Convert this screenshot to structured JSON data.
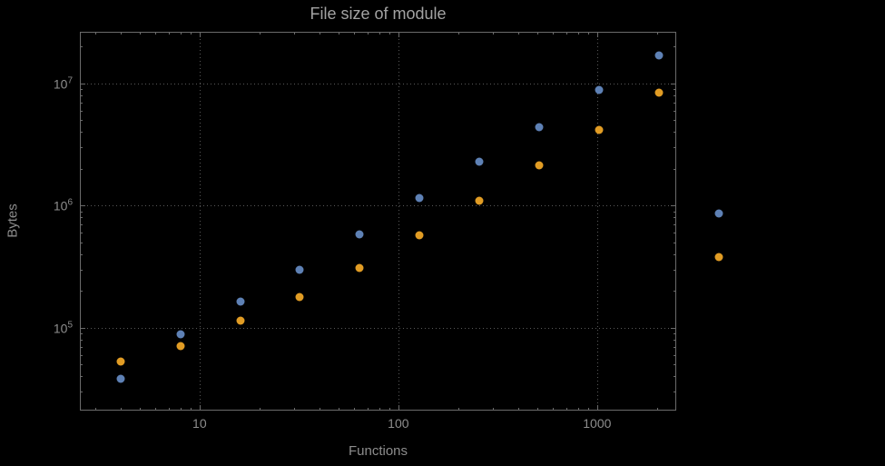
{
  "title": "File size of module",
  "chart_data": {
    "type": "scatter",
    "title": "File size of module",
    "xlabel": "Functions",
    "ylabel": "Bytes",
    "x_scale": "log",
    "y_scale": "log",
    "grid": true,
    "legend": "none",
    "xlim": [
      2.5,
      2500
    ],
    "ylim": [
      21000,
      26500000
    ],
    "x_ticks": [
      10,
      100,
      1000
    ],
    "x_tick_labels": [
      "10",
      "100",
      "1000"
    ],
    "y_ticks": [
      100000,
      1000000,
      10000000
    ],
    "y_tick_labels": [
      "10^5",
      "10^6",
      "10^7"
    ],
    "series": [
      {
        "name": "series-blue",
        "color": "#5e81b5",
        "points": [
          [
            4,
            38000
          ],
          [
            8,
            89000
          ],
          [
            16,
            165000
          ],
          [
            32,
            300000
          ],
          [
            64,
            580000
          ],
          [
            128,
            1150000
          ],
          [
            256,
            2300000
          ],
          [
            512,
            4400000
          ],
          [
            1024,
            8900000
          ],
          [
            2048,
            17000000
          ],
          [
            4096,
            870000
          ]
        ]
      },
      {
        "name": "series-orange",
        "color": "#e19c24",
        "points": [
          [
            4,
            53000
          ],
          [
            8,
            71000
          ],
          [
            16,
            115000
          ],
          [
            32,
            180000
          ],
          [
            64,
            310000
          ],
          [
            128,
            570000
          ],
          [
            256,
            1100000
          ],
          [
            512,
            2150000
          ],
          [
            1024,
            4200000
          ],
          [
            2048,
            8400000
          ],
          [
            4096,
            380000
          ]
        ]
      }
    ]
  },
  "colors": {
    "background": "#000000",
    "frame": "#6b6b6b",
    "grid": "#595959",
    "title_text": "#a3a3a3",
    "label_text": "#8d8d8d",
    "series1": "#5e81b5",
    "series2": "#e19c24"
  }
}
